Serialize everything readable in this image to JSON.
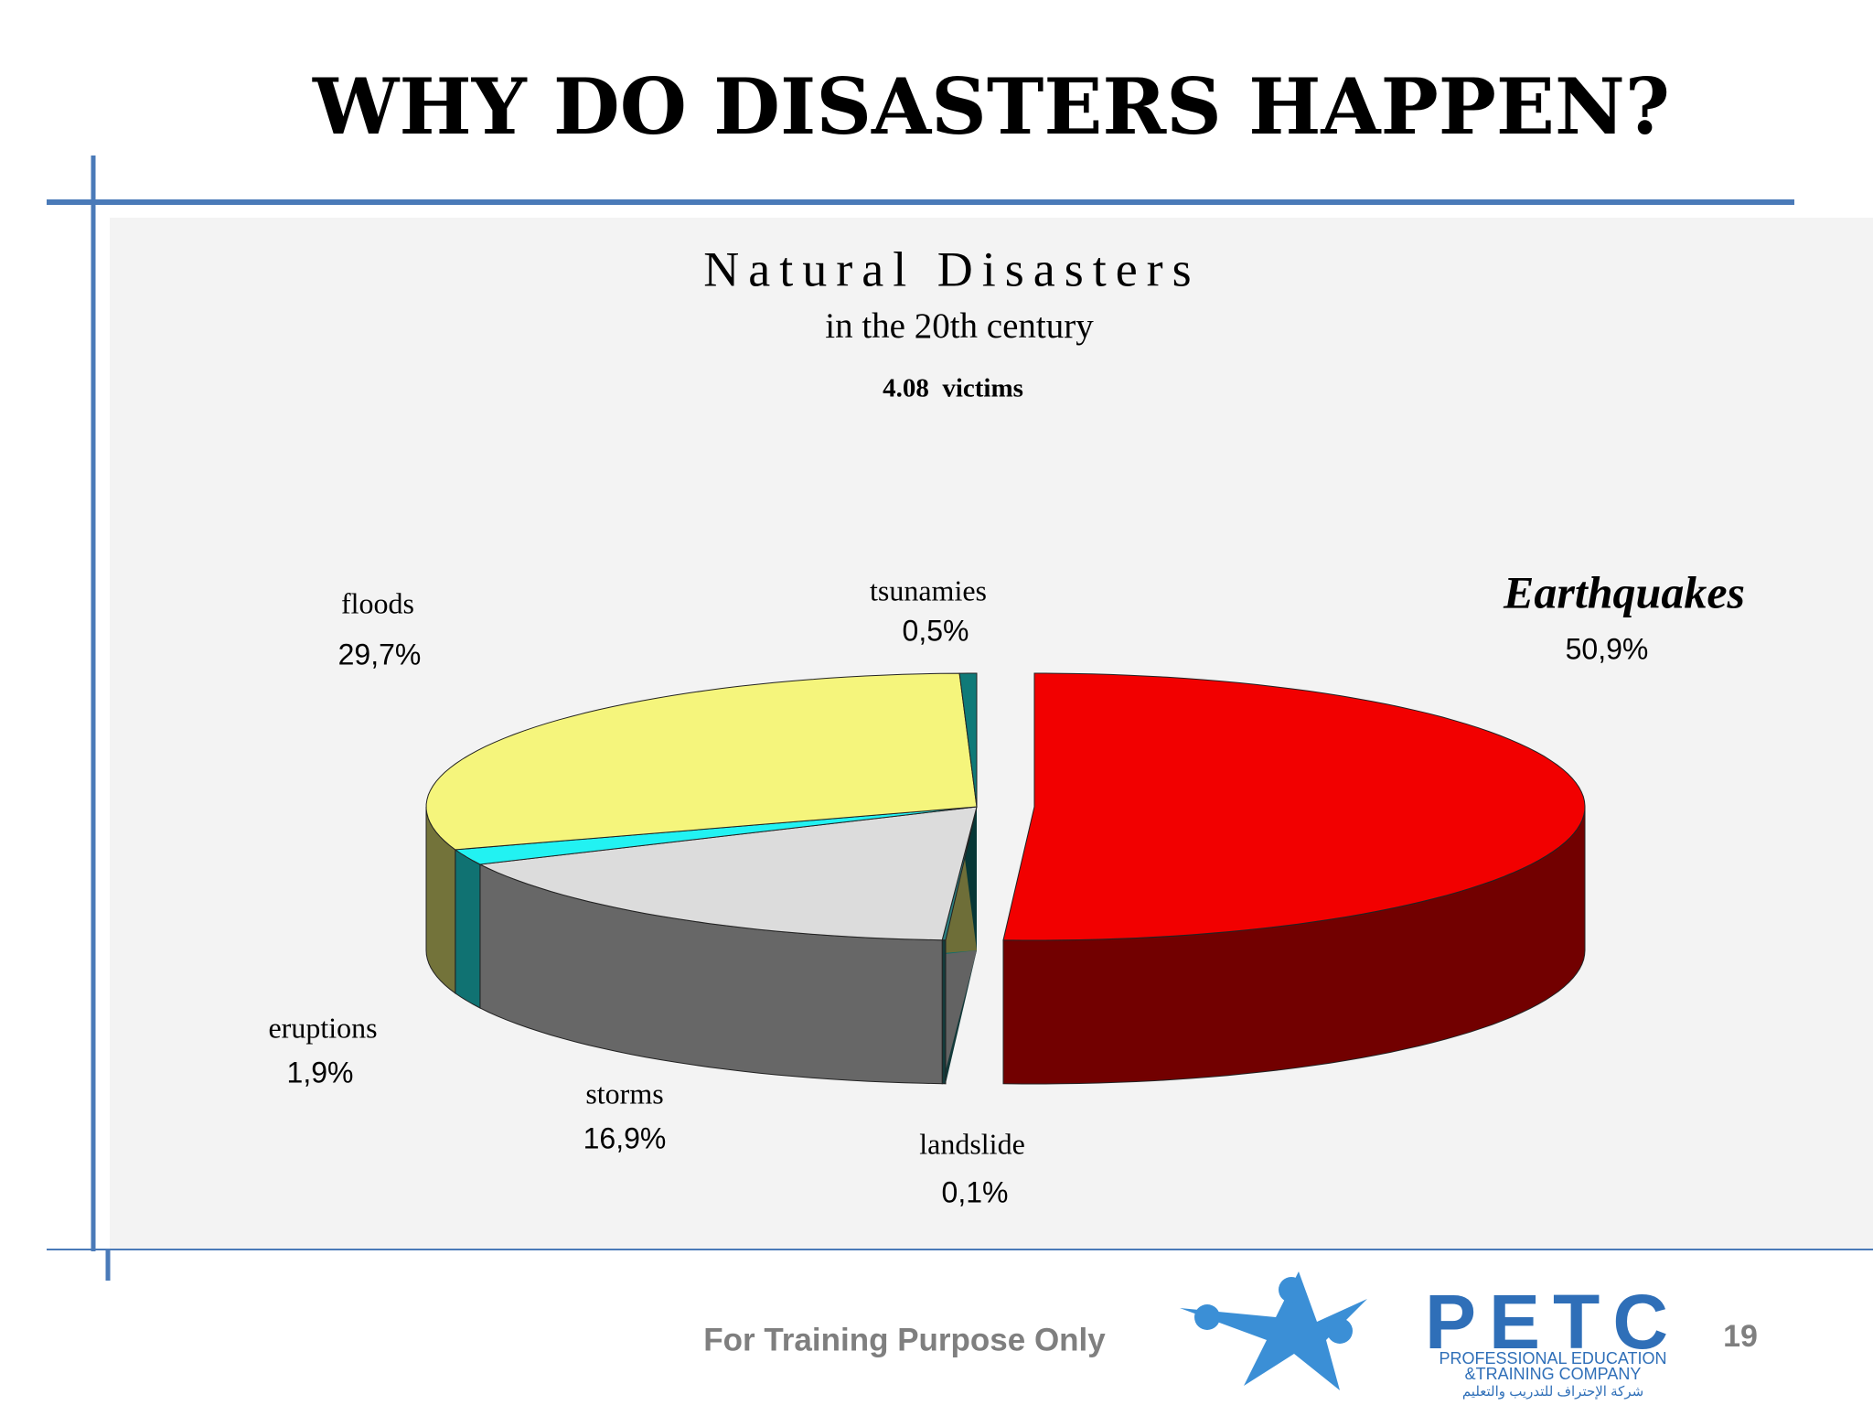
{
  "slide_title": "WHY DO DISASTERS HAPPEN?",
  "chart_data": {
    "type": "pie",
    "title": "Natural Disasters",
    "subtitle": "in the 20th century",
    "annotation": "4.08  victims",
    "categories": [
      "Earthquakes",
      "landslide",
      "storms",
      "eruptions",
      "floods",
      "tsunamies"
    ],
    "values": [
      50.9,
      0.1,
      16.9,
      1.9,
      29.7,
      0.5
    ],
    "value_labels": [
      "50,9%",
      "0,1%",
      "16,9%",
      "1,9%",
      "29,7%",
      "0,5%"
    ],
    "colors": [
      "#f20000",
      "#2a7e7e",
      "#dcdcdc",
      "#22f2f2",
      "#f5f57c",
      "#0f7a78"
    ],
    "explode": [
      true,
      false,
      false,
      false,
      false,
      false
    ]
  },
  "footer": {
    "note": "For Training Purpose Only",
    "page_number": 19
  },
  "logo": {
    "name": "PETC",
    "line1": "PROFESSIONAL EDUCATION",
    "line2": "&TRAINING COMPANY",
    "arabic": "شركة الإحتراف للتدريب والتعليم"
  }
}
